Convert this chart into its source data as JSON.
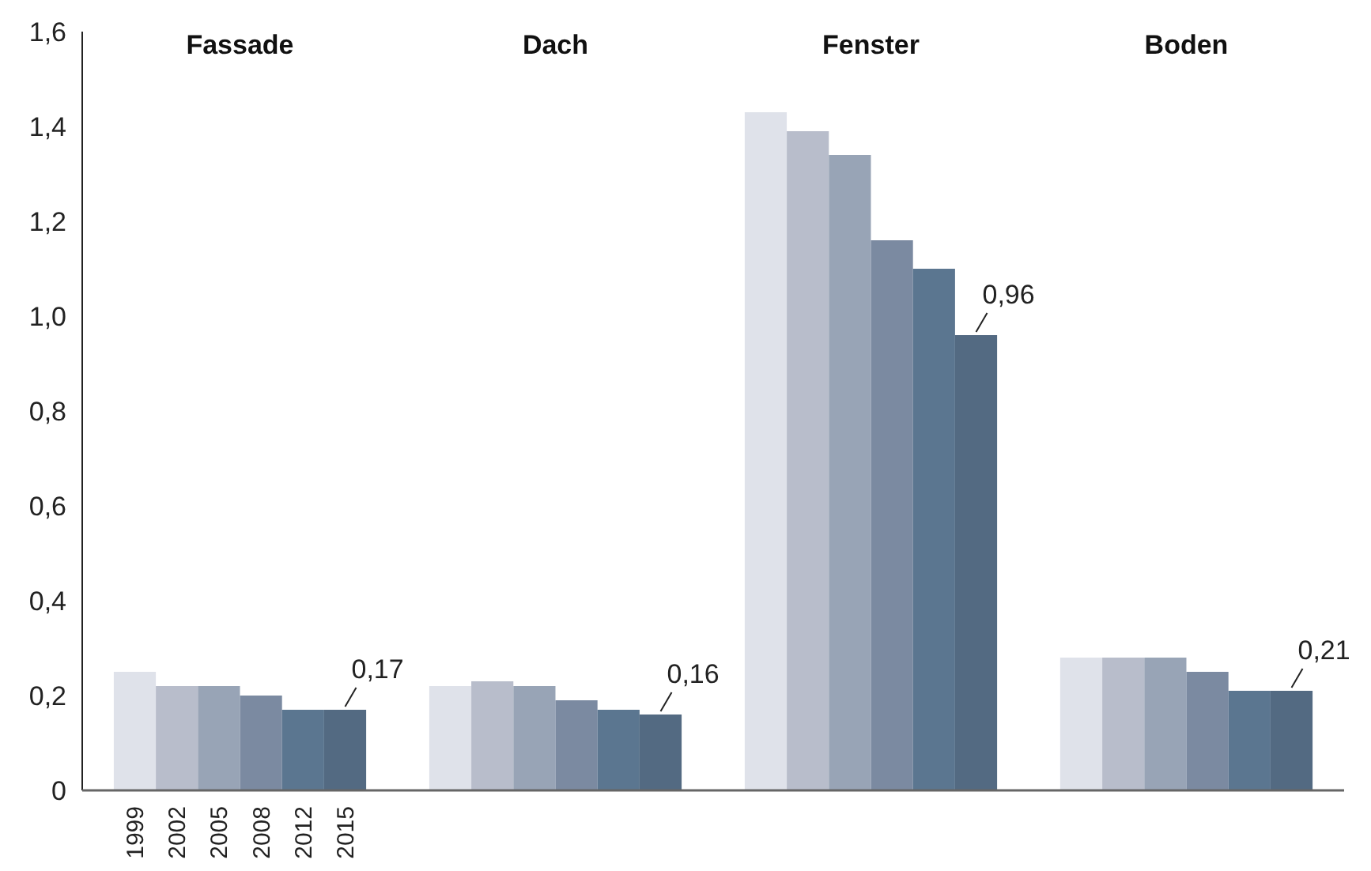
{
  "chart_data": {
    "type": "bar",
    "categories": [
      "Fassade",
      "Dach",
      "Fenster",
      "Boden"
    ],
    "series": [
      {
        "name": "1999",
        "color": "#dfe2ea",
        "values": [
          0.25,
          0.22,
          1.43,
          0.28
        ]
      },
      {
        "name": "2002",
        "color": "#b8bdcb",
        "values": [
          0.22,
          0.23,
          1.39,
          0.28
        ]
      },
      {
        "name": "2005",
        "color": "#98a4b6",
        "values": [
          0.22,
          0.22,
          1.34,
          0.28
        ]
      },
      {
        "name": "2008",
        "color": "#7b8aa1",
        "values": [
          0.2,
          0.19,
          1.16,
          0.25
        ]
      },
      {
        "name": "2012",
        "color": "#5b7690",
        "values": [
          0.17,
          0.17,
          1.1,
          0.21
        ]
      },
      {
        "name": "2015",
        "color": "#536a82",
        "values": [
          0.17,
          0.16,
          0.96,
          0.21
        ],
        "value_labels": [
          "0,17",
          "0,16",
          "0,96",
          "0,21"
        ]
      }
    ],
    "ylim": [
      0,
      1.6
    ],
    "yticks": [
      0,
      {
        "value": 0.2,
        "label": "0,2"
      },
      {
        "value": 0.4,
        "label": "0,4"
      },
      {
        "value": 0.6,
        "label": "0,6"
      },
      {
        "value": 0.8,
        "label": "0,8"
      },
      {
        "value": 1.0,
        "label": "1,0"
      },
      {
        "value": 1.2,
        "label": "1,2"
      },
      {
        "value": 1.4,
        "label": "1,4"
      },
      {
        "value": 1.6,
        "label": "1,6"
      }
    ]
  }
}
